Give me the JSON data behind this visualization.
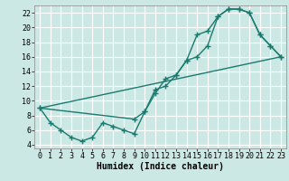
{
  "title": "",
  "xlabel": "Humidex (Indice chaleur)",
  "ylabel": "",
  "bg_color": "#cce8e5",
  "grid_color": "#ffffff",
  "line_color": "#1a7a6e",
  "xlim": [
    -0.5,
    23.5
  ],
  "ylim": [
    3.5,
    23.0
  ],
  "yticks": [
    4,
    6,
    8,
    10,
    12,
    14,
    16,
    18,
    20,
    22
  ],
  "xticks": [
    0,
    1,
    2,
    3,
    4,
    5,
    6,
    7,
    8,
    9,
    10,
    11,
    12,
    13,
    14,
    15,
    16,
    17,
    18,
    19,
    20,
    21,
    22,
    23
  ],
  "line1_x": [
    0,
    1,
    2,
    3,
    4,
    5,
    6,
    7,
    8,
    9,
    10,
    11,
    12,
    13,
    14,
    15,
    16,
    17,
    18,
    19,
    20,
    21,
    22,
    23
  ],
  "line1_y": [
    9,
    7,
    6,
    5,
    4.5,
    5,
    7,
    6.5,
    6.0,
    5.5,
    8.5,
    11.0,
    13.0,
    13.5,
    15.5,
    19.0,
    19.5,
    21.5,
    22.5,
    22.5,
    22.0,
    19.0,
    17.5,
    16.0
  ],
  "line2_x": [
    0,
    9,
    10,
    11,
    12,
    13,
    14,
    15,
    16,
    17,
    18,
    19,
    20,
    21,
    22,
    23
  ],
  "line2_y": [
    9,
    7.5,
    8.5,
    11.5,
    12.0,
    13.5,
    15.5,
    16.0,
    17.5,
    21.5,
    22.5,
    22.5,
    22.0,
    19.0,
    17.5,
    16.0
  ],
  "line3_x": [
    0,
    23
  ],
  "line3_y": [
    9,
    16.0
  ],
  "marker": "+",
  "markersize": 4,
  "linewidth": 1.0,
  "xlabel_fontsize": 7,
  "tick_fontsize": 6
}
